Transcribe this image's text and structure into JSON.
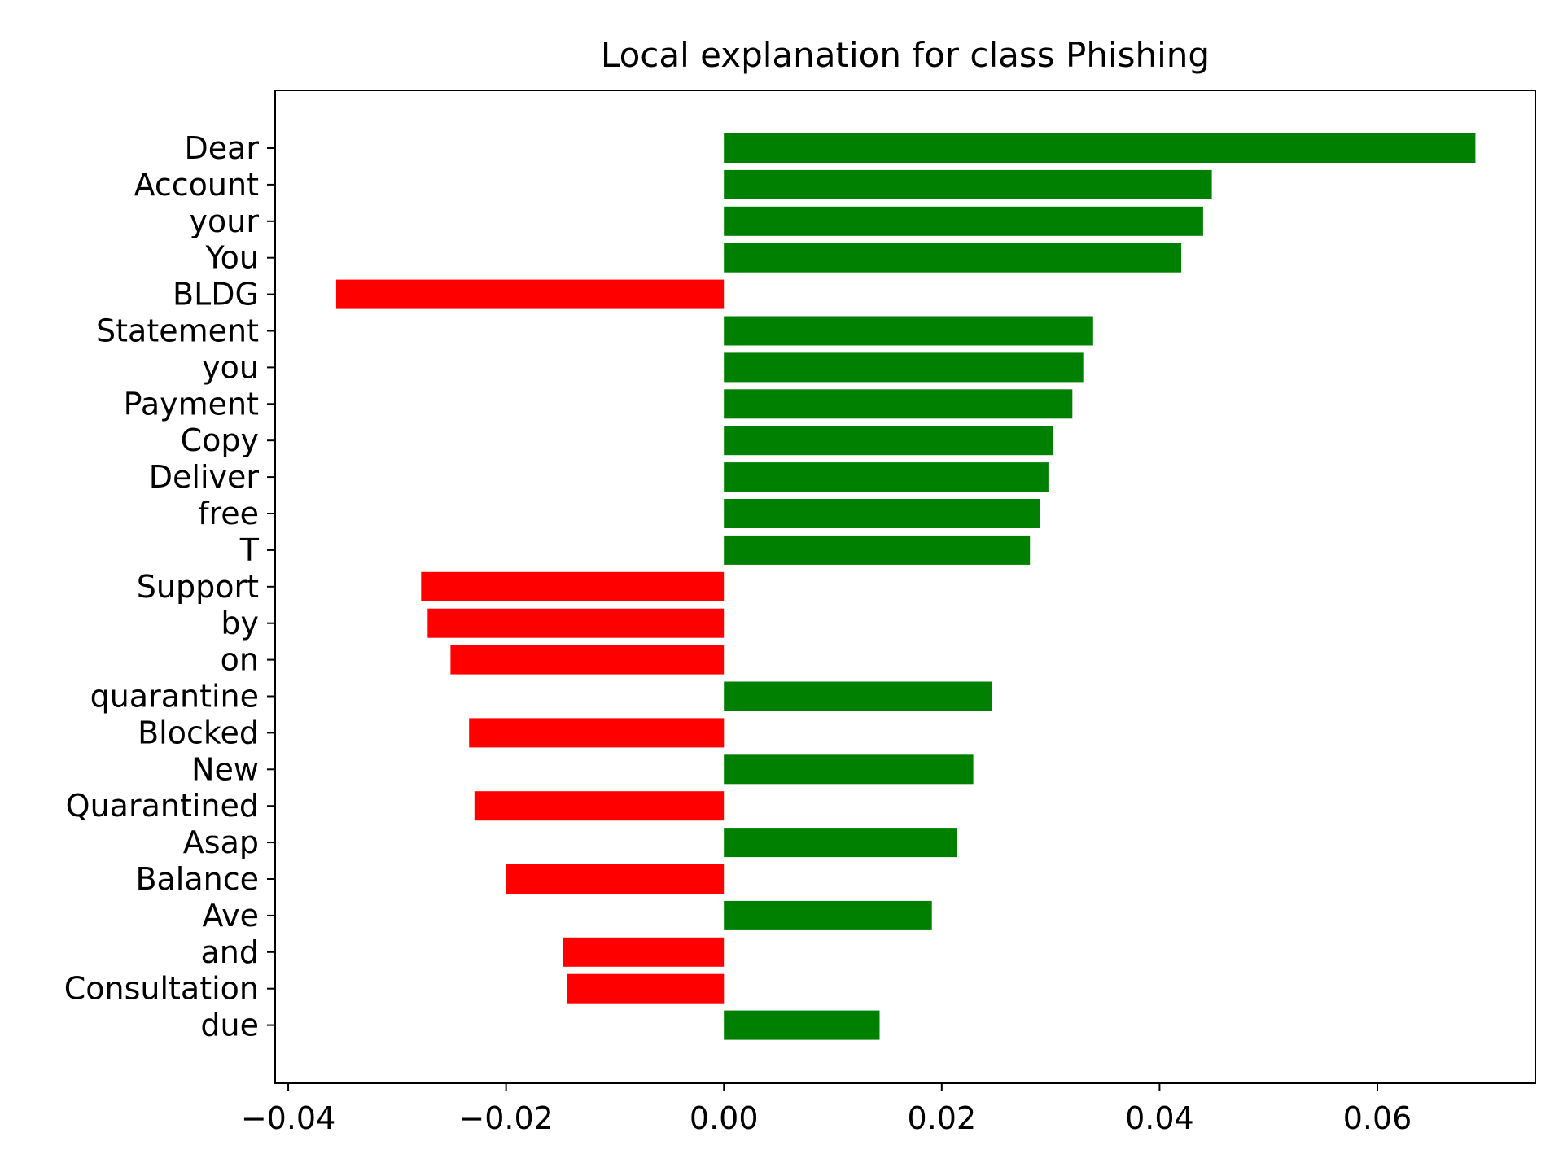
{
  "chart_data": {
    "type": "bar",
    "orientation": "horizontal",
    "title": "Local explanation for class Phishing",
    "xlabel": "",
    "ylabel": "",
    "xlim": [
      -0.0412,
      0.0745
    ],
    "xticks": [
      -0.04,
      -0.02,
      0.0,
      0.02,
      0.04,
      0.06
    ],
    "xtick_labels": [
      "−0.04",
      "−0.02",
      "0.00",
      "0.02",
      "0.04",
      "0.06"
    ],
    "grid": false,
    "legend": "none",
    "colors": {
      "positive": "#008000",
      "negative": "#ff0000",
      "axes": "#000000",
      "background": "#ffffff"
    },
    "categories": [
      "Dear",
      "Account",
      "your",
      "You",
      "BLDG",
      "Statement",
      "you",
      "Payment",
      "Copy",
      "Deliver",
      "free",
      "T",
      "Support",
      "by",
      "on",
      "quarantine",
      "Blocked",
      "New",
      "Quarantined",
      "Asap",
      "Balance",
      "Ave",
      "and",
      "Consultation",
      "due"
    ],
    "values": [
      0.069,
      0.0448,
      0.044,
      0.042,
      -0.0356,
      0.0339,
      0.033,
      0.032,
      0.0302,
      0.0298,
      0.029,
      0.0281,
      -0.0278,
      -0.0272,
      -0.0251,
      0.0246,
      -0.0234,
      0.0229,
      -0.0229,
      0.0214,
      -0.02,
      0.0191,
      -0.0148,
      -0.0144,
      0.0143
    ]
  }
}
